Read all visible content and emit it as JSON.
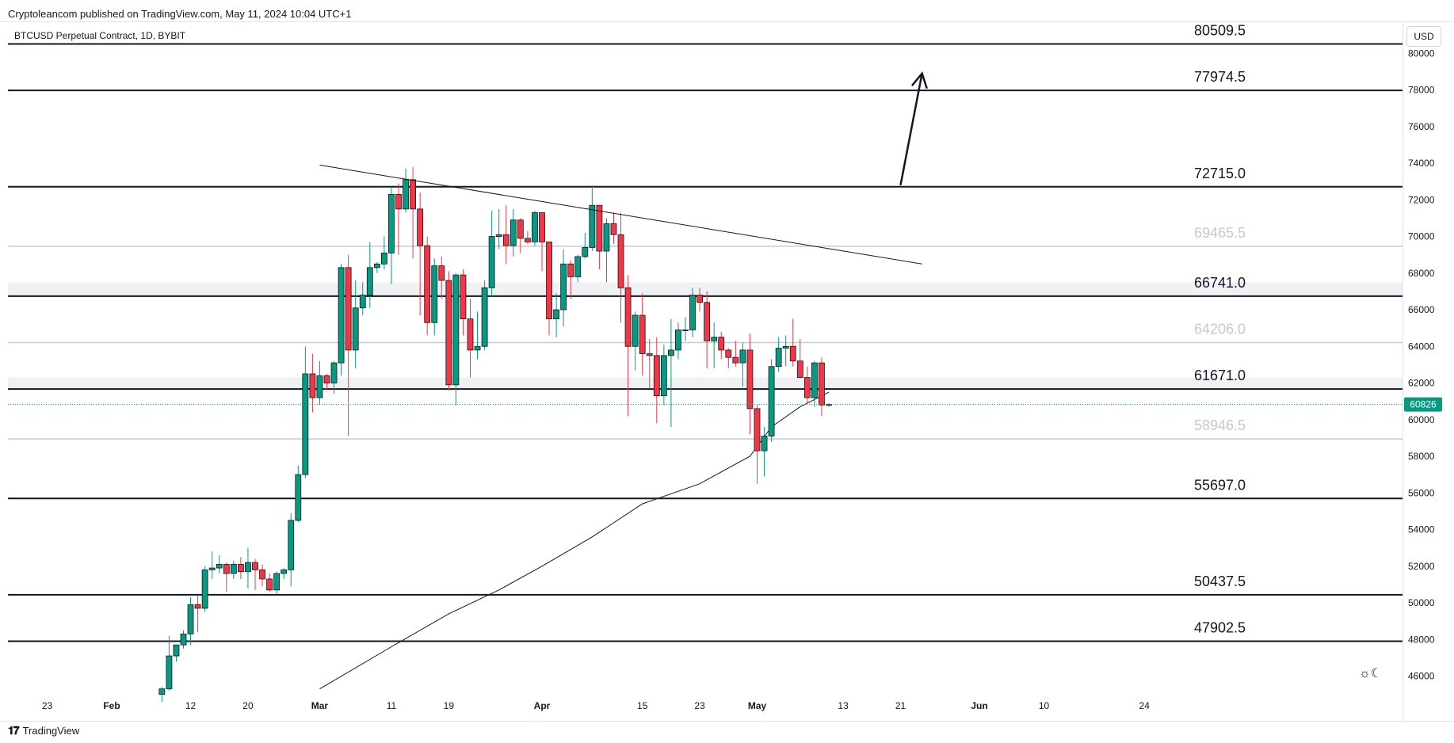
{
  "header": {
    "published": "Cryptoleancom published on TradingView.com, May 11, 2024 10:04 UTC+1"
  },
  "symbol": {
    "title": "BTCUSD Perpetual Contract, 1D, BYBIT"
  },
  "currency": "USD",
  "footer": {
    "brand": "TradingView"
  },
  "colors": {
    "up": "#089981",
    "down": "#f23645",
    "last_price_bg": "#089981"
  },
  "icons": [
    "sun-icon",
    "moon-icon",
    "tradingview-logo-icon"
  ],
  "chart_data": {
    "type": "candlestick",
    "y_axis": {
      "ticks": [
        46000,
        48000,
        50000,
        52000,
        54000,
        56000,
        58000,
        60000,
        62000,
        64000,
        66000,
        68000,
        70000,
        72000,
        74000,
        76000,
        78000,
        80000
      ],
      "range": [
        45200,
        81700
      ]
    },
    "x_axis": {
      "labels": [
        {
          "label": "23",
          "bold": false,
          "date": "2024-01-23"
        },
        {
          "label": "Feb",
          "bold": true,
          "date": "2024-02-01"
        },
        {
          "label": "12",
          "bold": false,
          "date": "2024-02-12"
        },
        {
          "label": "20",
          "bold": false,
          "date": "2024-02-20"
        },
        {
          "label": "Mar",
          "bold": true,
          "date": "2024-03-01"
        },
        {
          "label": "11",
          "bold": false,
          "date": "2024-03-11"
        },
        {
          "label": "19",
          "bold": false,
          "date": "2024-03-19"
        },
        {
          "label": "Apr",
          "bold": true,
          "date": "2024-04-01"
        },
        {
          "label": "15",
          "bold": false,
          "date": "2024-04-15"
        },
        {
          "label": "23",
          "bold": false,
          "date": "2024-04-23"
        },
        {
          "label": "May",
          "bold": true,
          "date": "2024-05-01"
        },
        {
          "label": "13",
          "bold": false,
          "date": "2024-05-13"
        },
        {
          "label": "21",
          "bold": false,
          "date": "2024-05-21"
        },
        {
          "label": "Jun",
          "bold": true,
          "date": "2024-06-01"
        },
        {
          "label": "10",
          "bold": false,
          "date": "2024-06-10"
        },
        {
          "label": "24",
          "bold": false,
          "date": "2024-06-24"
        }
      ]
    },
    "last_price": 60826,
    "levels": [
      {
        "value": 80509.5,
        "label": "80509.5",
        "style": "dark"
      },
      {
        "value": 77974.5,
        "label": "77974.5",
        "style": "dark"
      },
      {
        "value": 72715.0,
        "label": "72715.0",
        "style": "dark"
      },
      {
        "value": 69465.5,
        "label": "69465.5",
        "style": "light"
      },
      {
        "value": 66741.0,
        "label": "66741.0",
        "style": "dark"
      },
      {
        "value": 64206.0,
        "label": "64206.0",
        "style": "light"
      },
      {
        "value": 61671.0,
        "label": "61671.0",
        "style": "dark"
      },
      {
        "value": 58946.5,
        "label": "58946.5",
        "style": "light"
      },
      {
        "value": 55697.0,
        "label": "55697.0",
        "style": "dark"
      },
      {
        "value": 50437.5,
        "label": "50437.5",
        "style": "dark"
      },
      {
        "value": 47902.5,
        "label": "47902.5",
        "style": "dark"
      }
    ],
    "bands": [
      [
        66741,
        67500
      ],
      [
        61671,
        62300
      ]
    ],
    "trendline": {
      "start": {
        "date": "2024-03-01",
        "value": 73900
      },
      "end": {
        "date": "2024-05-24",
        "value": 68500
      }
    },
    "arrow": {
      "start": {
        "date": "2024-05-21",
        "value": 72800
      },
      "end": {
        "date": "2024-05-24",
        "value": 78900
      }
    },
    "moving_average": {
      "points": [
        [
          "2024-03-01",
          45300
        ],
        [
          "2024-03-11",
          47600
        ],
        [
          "2024-03-19",
          49400
        ],
        [
          "2024-03-26",
          50700
        ],
        [
          "2024-04-01",
          52000
        ],
        [
          "2024-04-08",
          53600
        ],
        [
          "2024-04-15",
          55400
        ],
        [
          "2024-04-23",
          56500
        ],
        [
          "2024-04-30",
          58000
        ],
        [
          "2024-05-03",
          59600
        ],
        [
          "2024-05-07",
          60700
        ],
        [
          "2024-05-11",
          61500
        ]
      ]
    },
    "candles": [
      {
        "date": "2024-02-08",
        "o": 45000,
        "h": 45400,
        "l": 44600,
        "c": 45300
      },
      {
        "date": "2024-02-09",
        "o": 45300,
        "h": 48200,
        "l": 45200,
        "c": 47100
      },
      {
        "date": "2024-02-10",
        "o": 47100,
        "h": 47700,
        "l": 46800,
        "c": 47700
      },
      {
        "date": "2024-02-11",
        "o": 47700,
        "h": 48500,
        "l": 47500,
        "c": 48300
      },
      {
        "date": "2024-02-12",
        "o": 48300,
        "h": 50300,
        "l": 47700,
        "c": 49900
      },
      {
        "date": "2024-02-13",
        "o": 49900,
        "h": 50400,
        "l": 48400,
        "c": 49700
      },
      {
        "date": "2024-02-14",
        "o": 49700,
        "h": 52000,
        "l": 49500,
        "c": 51800
      },
      {
        "date": "2024-02-15",
        "o": 51800,
        "h": 52800,
        "l": 51300,
        "c": 51900
      },
      {
        "date": "2024-02-16",
        "o": 51900,
        "h": 52600,
        "l": 51600,
        "c": 52100
      },
      {
        "date": "2024-02-17",
        "o": 52100,
        "h": 52200,
        "l": 50600,
        "c": 51600
      },
      {
        "date": "2024-02-18",
        "o": 51600,
        "h": 52300,
        "l": 51300,
        "c": 52100
      },
      {
        "date": "2024-02-19",
        "o": 52100,
        "h": 52500,
        "l": 51300,
        "c": 51700
      },
      {
        "date": "2024-02-20",
        "o": 51700,
        "h": 53000,
        "l": 50800,
        "c": 52200
      },
      {
        "date": "2024-02-21",
        "o": 52200,
        "h": 52400,
        "l": 50700,
        "c": 51800
      },
      {
        "date": "2024-02-22",
        "o": 51800,
        "h": 52100,
        "l": 50900,
        "c": 51300
      },
      {
        "date": "2024-02-23",
        "o": 51300,
        "h": 51600,
        "l": 50600,
        "c": 50700
      },
      {
        "date": "2024-02-24",
        "o": 50700,
        "h": 51700,
        "l": 50500,
        "c": 51600
      },
      {
        "date": "2024-02-25",
        "o": 51600,
        "h": 51900,
        "l": 51300,
        "c": 51800
      },
      {
        "date": "2024-02-26",
        "o": 51800,
        "h": 54900,
        "l": 50900,
        "c": 54500
      },
      {
        "date": "2024-02-27",
        "o": 54500,
        "h": 57500,
        "l": 54400,
        "c": 57000
      },
      {
        "date": "2024-02-28",
        "o": 57000,
        "h": 64000,
        "l": 56800,
        "c": 62500
      },
      {
        "date": "2024-02-29",
        "o": 62500,
        "h": 63600,
        "l": 60400,
        "c": 61200
      },
      {
        "date": "2024-03-01",
        "o": 61200,
        "h": 63200,
        "l": 60800,
        "c": 62400
      },
      {
        "date": "2024-03-02",
        "o": 62400,
        "h": 62500,
        "l": 61600,
        "c": 62000
      },
      {
        "date": "2024-03-03",
        "o": 62000,
        "h": 63200,
        "l": 61400,
        "c": 63100
      },
      {
        "date": "2024-03-04",
        "o": 63100,
        "h": 68500,
        "l": 62400,
        "c": 68300
      },
      {
        "date": "2024-03-05",
        "o": 68300,
        "h": 69000,
        "l": 59100,
        "c": 63800
      },
      {
        "date": "2024-03-06",
        "o": 63800,
        "h": 67600,
        "l": 62800,
        "c": 66100
      },
      {
        "date": "2024-03-07",
        "o": 66100,
        "h": 67500,
        "l": 65700,
        "c": 66800
      },
      {
        "date": "2024-03-08",
        "o": 66800,
        "h": 69700,
        "l": 66100,
        "c": 68300
      },
      {
        "date": "2024-03-09",
        "o": 68300,
        "h": 68600,
        "l": 68000,
        "c": 68500
      },
      {
        "date": "2024-03-10",
        "o": 68500,
        "h": 70000,
        "l": 68200,
        "c": 69100
      },
      {
        "date": "2024-03-11",
        "o": 69100,
        "h": 72700,
        "l": 67400,
        "c": 72300
      },
      {
        "date": "2024-03-12",
        "o": 72300,
        "h": 72900,
        "l": 69000,
        "c": 71500
      },
      {
        "date": "2024-03-13",
        "o": 71500,
        "h": 73700,
        "l": 71300,
        "c": 73100
      },
      {
        "date": "2024-03-14",
        "o": 73100,
        "h": 73800,
        "l": 68800,
        "c": 71500
      },
      {
        "date": "2024-03-15",
        "o": 71500,
        "h": 72400,
        "l": 65700,
        "c": 69500
      },
      {
        "date": "2024-03-16",
        "o": 69500,
        "h": 70000,
        "l": 64600,
        "c": 65300
      },
      {
        "date": "2024-03-17",
        "o": 65300,
        "h": 68800,
        "l": 64600,
        "c": 68400
      },
      {
        "date": "2024-03-18",
        "o": 68400,
        "h": 68900,
        "l": 66600,
        "c": 67600
      },
      {
        "date": "2024-03-19",
        "o": 67600,
        "h": 68100,
        "l": 61600,
        "c": 61900
      },
      {
        "date": "2024-03-20",
        "o": 61900,
        "h": 68000,
        "l": 60800,
        "c": 67900
      },
      {
        "date": "2024-03-21",
        "o": 67900,
        "h": 68200,
        "l": 64600,
        "c": 65500
      },
      {
        "date": "2024-03-22",
        "o": 65500,
        "h": 66600,
        "l": 62300,
        "c": 63800
      },
      {
        "date": "2024-03-23",
        "o": 63800,
        "h": 65900,
        "l": 63300,
        "c": 64000
      },
      {
        "date": "2024-03-24",
        "o": 64000,
        "h": 67600,
        "l": 63800,
        "c": 67200
      },
      {
        "date": "2024-03-25",
        "o": 67200,
        "h": 71400,
        "l": 66700,
        "c": 70000
      },
      {
        "date": "2024-03-26",
        "o": 70000,
        "h": 71500,
        "l": 69300,
        "c": 70100
      },
      {
        "date": "2024-03-27",
        "o": 70100,
        "h": 71700,
        "l": 68500,
        "c": 69500
      },
      {
        "date": "2024-03-28",
        "o": 69500,
        "h": 71500,
        "l": 68900,
        "c": 70900
      },
      {
        "date": "2024-03-29",
        "o": 70900,
        "h": 71000,
        "l": 69100,
        "c": 69900
      },
      {
        "date": "2024-03-30",
        "o": 69900,
        "h": 70300,
        "l": 69600,
        "c": 69700
      },
      {
        "date": "2024-03-31",
        "o": 69700,
        "h": 71400,
        "l": 69500,
        "c": 71300
      },
      {
        "date": "2024-04-01",
        "o": 71300,
        "h": 71300,
        "l": 68100,
        "c": 69700
      },
      {
        "date": "2024-04-02",
        "o": 69700,
        "h": 69700,
        "l": 64600,
        "c": 65500
      },
      {
        "date": "2024-04-03",
        "o": 65500,
        "h": 66900,
        "l": 64500,
        "c": 66000
      },
      {
        "date": "2024-04-04",
        "o": 66000,
        "h": 69300,
        "l": 65100,
        "c": 68500
      },
      {
        "date": "2024-04-05",
        "o": 68500,
        "h": 68700,
        "l": 66600,
        "c": 67800
      },
      {
        "date": "2024-04-06",
        "o": 67800,
        "h": 69000,
        "l": 67500,
        "c": 68900
      },
      {
        "date": "2024-04-07",
        "o": 68900,
        "h": 70200,
        "l": 68800,
        "c": 69400
      },
      {
        "date": "2024-04-08",
        "o": 69400,
        "h": 72800,
        "l": 69200,
        "c": 71700
      },
      {
        "date": "2024-04-09",
        "o": 71700,
        "h": 71700,
        "l": 68200,
        "c": 69200
      },
      {
        "date": "2024-04-10",
        "o": 69200,
        "h": 71000,
        "l": 67500,
        "c": 70700
      },
      {
        "date": "2024-04-11",
        "o": 70700,
        "h": 71300,
        "l": 69600,
        "c": 70100
      },
      {
        "date": "2024-04-12",
        "o": 70100,
        "h": 71300,
        "l": 65300,
        "c": 67200
      },
      {
        "date": "2024-04-13",
        "o": 67200,
        "h": 67900,
        "l": 60200,
        "c": 64000
      },
      {
        "date": "2024-04-14",
        "o": 64000,
        "h": 65900,
        "l": 62700,
        "c": 65700
      },
      {
        "date": "2024-04-15",
        "o": 65700,
        "h": 66900,
        "l": 62400,
        "c": 63600
      },
      {
        "date": "2024-04-16",
        "o": 63600,
        "h": 64400,
        "l": 61700,
        "c": 63500
      },
      {
        "date": "2024-04-17",
        "o": 63500,
        "h": 64500,
        "l": 59800,
        "c": 61300
      },
      {
        "date": "2024-04-18",
        "o": 61300,
        "h": 64100,
        "l": 60800,
        "c": 63500
      },
      {
        "date": "2024-04-19",
        "o": 63500,
        "h": 65500,
        "l": 59600,
        "c": 63800
      },
      {
        "date": "2024-04-20",
        "o": 63800,
        "h": 65300,
        "l": 63300,
        "c": 64900
      },
      {
        "date": "2024-04-21",
        "o": 64900,
        "h": 65600,
        "l": 64300,
        "c": 64900
      },
      {
        "date": "2024-04-22",
        "o": 64900,
        "h": 67200,
        "l": 64500,
        "c": 66800
      },
      {
        "date": "2024-04-23",
        "o": 66800,
        "h": 67200,
        "l": 65900,
        "c": 66400
      },
      {
        "date": "2024-04-24",
        "o": 66400,
        "h": 67000,
        "l": 62800,
        "c": 64300
      },
      {
        "date": "2024-04-25",
        "o": 64300,
        "h": 65300,
        "l": 62800,
        "c": 64500
      },
      {
        "date": "2024-04-26",
        "o": 64500,
        "h": 64800,
        "l": 63300,
        "c": 63800
      },
      {
        "date": "2024-04-27",
        "o": 63800,
        "h": 63900,
        "l": 62800,
        "c": 63400
      },
      {
        "date": "2024-04-28",
        "o": 63400,
        "h": 64300,
        "l": 62900,
        "c": 63100
      },
      {
        "date": "2024-04-29",
        "o": 63100,
        "h": 64200,
        "l": 61800,
        "c": 63800
      },
      {
        "date": "2024-04-30",
        "o": 63800,
        "h": 64700,
        "l": 59200,
        "c": 60600
      },
      {
        "date": "2024-05-01",
        "o": 60600,
        "h": 60800,
        "l": 56500,
        "c": 58300
      },
      {
        "date": "2024-05-02",
        "o": 58300,
        "h": 59600,
        "l": 56900,
        "c": 59100
      },
      {
        "date": "2024-05-03",
        "o": 59100,
        "h": 63300,
        "l": 58800,
        "c": 62900
      },
      {
        "date": "2024-05-04",
        "o": 62900,
        "h": 64500,
        "l": 62600,
        "c": 63900
      },
      {
        "date": "2024-05-05",
        "o": 63900,
        "h": 64600,
        "l": 62900,
        "c": 64000
      },
      {
        "date": "2024-05-06",
        "o": 64000,
        "h": 65500,
        "l": 62900,
        "c": 63200
      },
      {
        "date": "2024-05-07",
        "o": 63200,
        "h": 64400,
        "l": 62300,
        "c": 62300
      },
      {
        "date": "2024-05-08",
        "o": 62300,
        "h": 62900,
        "l": 60900,
        "c": 61200
      },
      {
        "date": "2024-05-09",
        "o": 61200,
        "h": 63200,
        "l": 60700,
        "c": 63100
      },
      {
        "date": "2024-05-10",
        "o": 63100,
        "h": 63400,
        "l": 60200,
        "c": 60800
      },
      {
        "date": "2024-05-11",
        "o": 60800,
        "h": 60900,
        "l": 60700,
        "c": 60826
      }
    ]
  }
}
